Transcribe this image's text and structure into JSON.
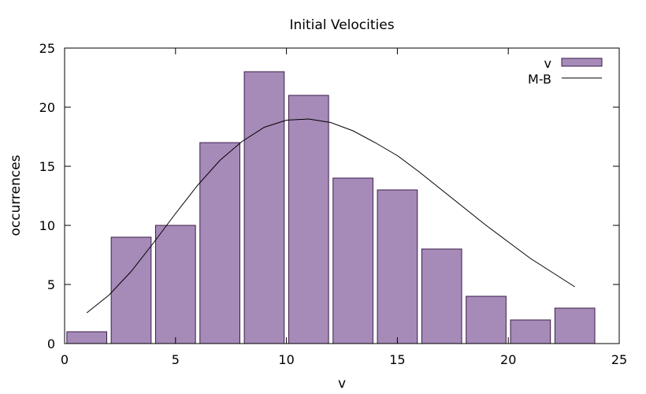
{
  "chart_data": {
    "type": "bar",
    "title": "Initial Velocities",
    "xlabel": "v",
    "ylabel": "occurrences",
    "xlim": [
      0,
      25
    ],
    "ylim": [
      0,
      25
    ],
    "xticks": [
      0,
      5,
      10,
      15,
      20,
      25
    ],
    "yticks": [
      0,
      5,
      10,
      15,
      20,
      25
    ],
    "grid": false,
    "legend_position": "top-right",
    "series": [
      {
        "name": "v",
        "kind": "histogram",
        "color": "#a68ab8",
        "edge_color": "#3b1d4a",
        "bin_width": 2,
        "x": [
          1,
          3,
          5,
          7,
          9,
          11,
          13,
          15,
          17,
          19,
          21,
          23
        ],
        "values": [
          1,
          9,
          10,
          17,
          23,
          21,
          14,
          13,
          8,
          4,
          2,
          3
        ]
      },
      {
        "name": "M-B",
        "kind": "line",
        "color": "#000000",
        "x": [
          1,
          2,
          3,
          4,
          5,
          6,
          7,
          8,
          9,
          10,
          11,
          12,
          13,
          14,
          15,
          16,
          17,
          18,
          19,
          20,
          21,
          22,
          23
        ],
        "values": [
          2.6,
          4.1,
          6.1,
          8.5,
          11.0,
          13.4,
          15.5,
          17.1,
          18.3,
          18.9,
          19.0,
          18.7,
          18.0,
          17.0,
          15.9,
          14.5,
          13.0,
          11.5,
          10.0,
          8.6,
          7.2,
          6.0,
          4.8
        ]
      }
    ]
  }
}
